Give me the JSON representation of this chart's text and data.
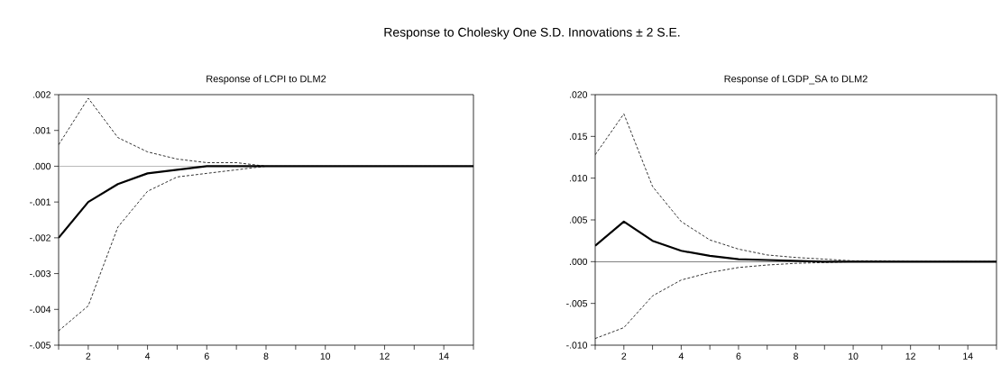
{
  "chart_data": [
    {
      "type": "line",
      "title": "Response of LCPI to DLM2",
      "annotations": [
        "Response to Cholesky One S.D. Innovations ± 2 S.E."
      ],
      "x": [
        1,
        2,
        3,
        4,
        5,
        6,
        7,
        8,
        9,
        10,
        11,
        12,
        13,
        14,
        15
      ],
      "xlim": [
        1,
        15
      ],
      "xticks": [
        {
          "value": 1,
          "label": null
        },
        2,
        {
          "value": 3,
          "label": null
        },
        4,
        {
          "value": 5,
          "label": null
        },
        6,
        {
          "value": 7,
          "label": null
        },
        8,
        {
          "value": 9,
          "label": null
        },
        10,
        {
          "value": 11,
          "label": null
        },
        12,
        {
          "value": 13,
          "label": null
        },
        14,
        {
          "value": 15,
          "label": null
        }
      ],
      "ylim": [
        -0.005,
        0.002
      ],
      "yticks": [
        {
          "value": -0.005,
          "label": "-.005"
        },
        {
          "value": -0.004,
          "label": "-.004"
        },
        {
          "value": -0.003,
          "label": "-.003"
        },
        {
          "value": -0.002,
          "label": "-.002"
        },
        {
          "value": -0.001,
          "label": "-.001"
        },
        {
          "value": 0,
          "label": ".000"
        },
        {
          "value": 0.001,
          "label": ".001"
        },
        {
          "value": 0.002,
          "label": ".002"
        }
      ],
      "grid": false,
      "ref_lines": [
        {
          "axis": "y",
          "value": 0,
          "color": "#808080"
        }
      ],
      "series": [
        {
          "color": "#000000",
          "line_style": "dashed",
          "values": [
            0.0006,
            0.0019,
            0.0008,
            0.0004,
            0.0002,
            0.0001,
            0.0001,
            0,
            0,
            0,
            0,
            0,
            0,
            0,
            0
          ]
        },
        {
          "color": "#000000",
          "line_style": "dashed",
          "values": [
            -0.0046,
            -0.0039,
            -0.0017,
            -0.0007,
            -0.0003,
            -0.0002,
            -0.0001,
            0,
            0,
            0,
            0,
            0,
            0,
            0,
            0
          ]
        },
        {
          "color": "#000000",
          "line_style": "solid",
          "values": [
            -0.002,
            -0.001,
            -0.0005,
            -0.0002,
            -0.0001,
            0,
            0,
            0,
            0,
            0,
            0,
            0,
            0,
            0,
            0
          ]
        }
      ]
    },
    {
      "type": "line",
      "title": "Response of LGDP_SA to DLM2",
      "x": [
        1,
        2,
        3,
        4,
        5,
        6,
        7,
        8,
        9,
        10,
        11,
        12,
        13,
        14,
        15
      ],
      "xlim": [
        1,
        15
      ],
      "xticks": [
        {
          "value": 1,
          "label": null
        },
        2,
        {
          "value": 3,
          "label": null
        },
        4,
        {
          "value": 5,
          "label": null
        },
        6,
        {
          "value": 7,
          "label": null
        },
        8,
        {
          "value": 9,
          "label": null
        },
        10,
        {
          "value": 11,
          "label": null
        },
        12,
        {
          "value": 13,
          "label": null
        },
        14,
        {
          "value": 15,
          "label": null
        }
      ],
      "ylim": [
        -0.01,
        0.02
      ],
      "yticks": [
        {
          "value": -0.01,
          "label": "-.010"
        },
        {
          "value": -0.005,
          "label": "-.005"
        },
        {
          "value": 0,
          "label": ".000"
        },
        {
          "value": 0.005,
          "label": ".005"
        },
        {
          "value": 0.01,
          "label": ".010"
        },
        {
          "value": 0.015,
          "label": ".015"
        },
        {
          "value": 0.02,
          "label": ".020"
        }
      ],
      "grid": false,
      "ref_lines": [
        {
          "axis": "y",
          "value": 0,
          "color": "#000000"
        }
      ],
      "series": [
        {
          "color": "#000000",
          "line_style": "dashed",
          "values": [
            0.0128,
            0.0177,
            0.009,
            0.0048,
            0.0026,
            0.0015,
            0.0008,
            0.0005,
            0.0003,
            0.0001,
            0.0001,
            0,
            0,
            0,
            0
          ]
        },
        {
          "color": "#000000",
          "line_style": "dashed",
          "values": [
            -0.0092,
            -0.0079,
            -0.0041,
            -0.0022,
            -0.0013,
            -0.0007,
            -0.0004,
            -0.0002,
            -0.0001,
            0,
            0,
            0,
            0,
            0,
            0
          ]
        },
        {
          "color": "#000000",
          "line_style": "solid",
          "values": [
            0.0019,
            0.0048,
            0.0025,
            0.0013,
            0.0007,
            0.0003,
            0.0002,
            0.0001,
            0,
            0,
            0,
            0,
            0,
            0,
            0
          ]
        }
      ]
    }
  ]
}
